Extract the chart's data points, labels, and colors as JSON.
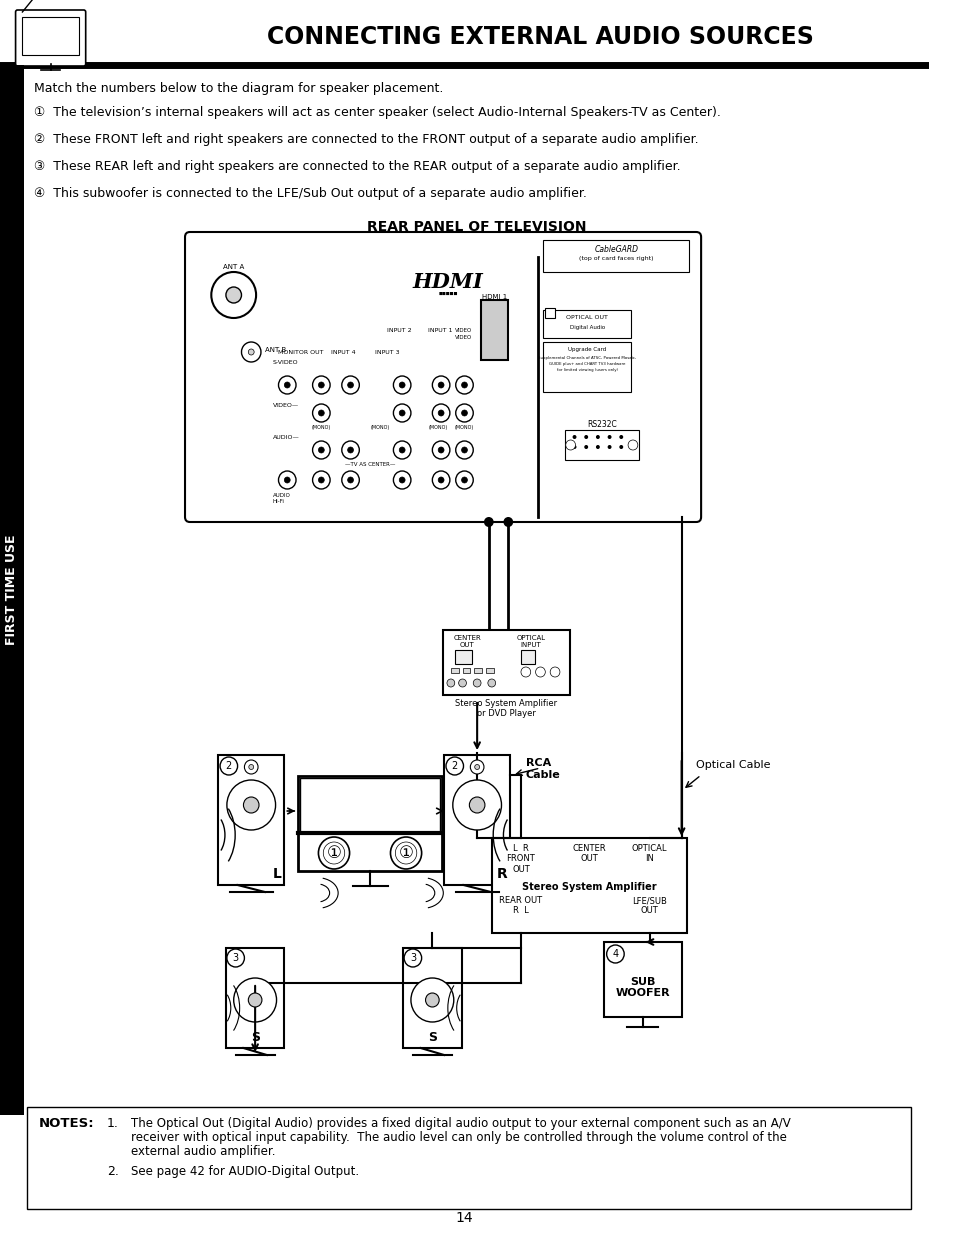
{
  "title": "CONNECTING EXTERNAL AUDIO SOURCES",
  "subtitle": "Match the numbers below to the diagram for speaker placement.",
  "item1": "①  The television’s internal speakers will act as center speaker (select Audio-Internal Speakers-TV as Center).",
  "item2": "②  These FRONT left and right speakers are connected to the FRONT output of a separate audio amplifier.",
  "item3": "③  These REAR left and right speakers are connected to the REAR output of a separate audio amplifier.",
  "item4": "④  This subwoofer is connected to the LFE/Sub Out output of a separate audio amplifier.",
  "section_label": "FIRST TIME USE",
  "rear_panel_title": "REAR PANEL OF TELEVISION",
  "notes_title": "NOTES:",
  "note1a": "The Optical Out (Digital Audio) provides a fixed digital audio output to your external component such as an A/V",
  "note1b": "receiver with optical input capability.  The audio level can only be controlled through the volume control of the",
  "note1c": "external audio amplifier.",
  "note2": "See page 42 for AUDIO-Digital Output.",
  "page_number": "14",
  "rca_label": "RCA\nCable",
  "optical_label": "Optical Cable",
  "stereo_amp1": "Stereo System Amplifier\nor DVD Player",
  "stereo_amp2": "Stereo System Amplifier",
  "front_out": "L  R\nFRONT\nOUT",
  "center_out": "CENTER\nOUT",
  "optical_in": "OPTICAL\nIN",
  "rear_out": "REAR OUT\nR  L",
  "lfe_sub": "LFE/SUB\nOUT",
  "sub_label": "SUB\nWOOFER",
  "bg": "#ffffff"
}
